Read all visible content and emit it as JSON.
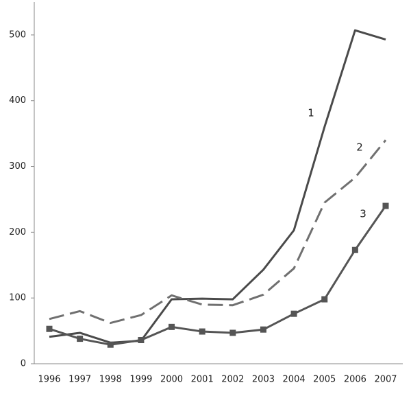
{
  "chart_data": {
    "type": "line",
    "categories": [
      "1996",
      "1997",
      "1998",
      "1999",
      "2000",
      "2001",
      "2002",
      "2003",
      "2004",
      "2005",
      "2006",
      "2007"
    ],
    "series": [
      {
        "name": "1",
        "color": "#4a4a4a",
        "dash": false,
        "marker": "none",
        "values": [
          41,
          47,
          32,
          35,
          98,
          99,
          98,
          143,
          203,
          360,
          507,
          493
        ]
      },
      {
        "name": "2",
        "color": "#707070",
        "dash": true,
        "marker": "none",
        "values": [
          68,
          80,
          62,
          74,
          104,
          90,
          89,
          105,
          145,
          245,
          283,
          340
        ]
      },
      {
        "name": "3",
        "color": "#555555",
        "dash": false,
        "marker": "square",
        "values": [
          53,
          38,
          29,
          36,
          56,
          49,
          47,
          52,
          76,
          98,
          173,
          240
        ]
      }
    ],
    "ylim": [
      0,
      550
    ],
    "yticks": [
      0,
      100,
      200,
      300,
      400,
      500
    ],
    "grid": false
  }
}
